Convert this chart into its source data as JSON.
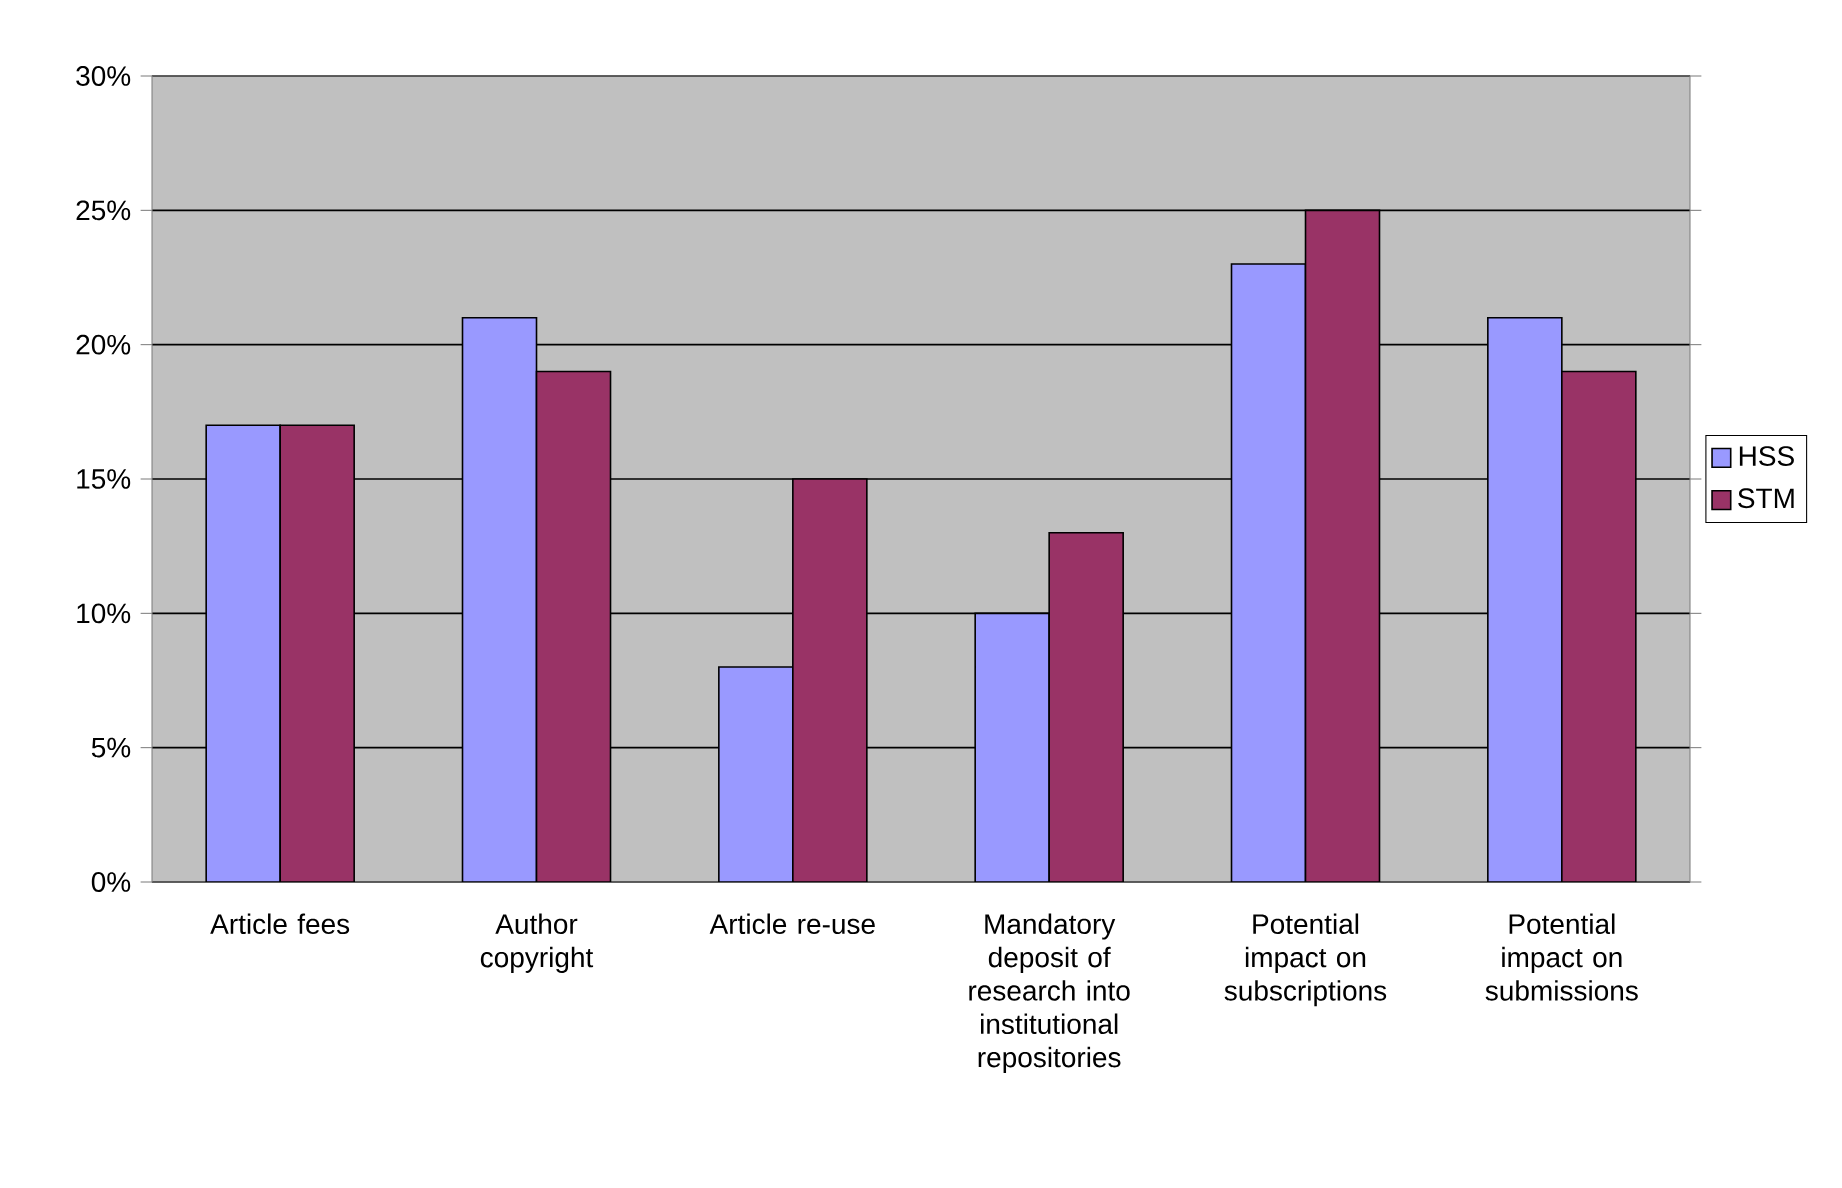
{
  "chart_data": {
    "type": "bar",
    "categories": [
      "Article fees",
      "Author copyright",
      "Article re-use",
      "Mandatory deposit of research into institutional repositories",
      "Potential impact on subscriptions",
      "Potential impact on submissions"
    ],
    "series": [
      {
        "name": "HSS",
        "color": "#9999ff",
        "values": [
          17,
          21,
          8,
          10,
          23,
          21
        ]
      },
      {
        "name": "STM",
        "color": "#993366",
        "values": [
          17,
          19,
          15,
          13,
          25,
          19
        ]
      }
    ],
    "ylim": [
      0,
      30
    ],
    "yticks": [
      {
        "value": 0,
        "label": "0%"
      },
      {
        "value": 5,
        "label": "5%"
      },
      {
        "value": 10,
        "label": "10%"
      },
      {
        "value": 15,
        "label": "15%"
      },
      {
        "value": 20,
        "label": "20%"
      },
      {
        "value": 25,
        "label": "25%"
      },
      {
        "value": 30,
        "label": "30%"
      }
    ],
    "grid": "y",
    "legend": "right"
  }
}
